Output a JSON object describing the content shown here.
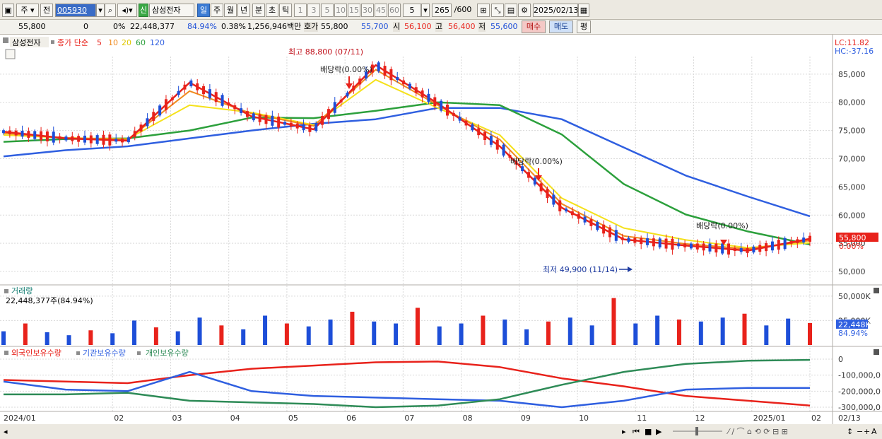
{
  "toolbar": {
    "type_label": "주",
    "prev_label": "전",
    "code_value": "005930",
    "new_badge": "신",
    "stock_name": "삼성전자",
    "period_tabs": [
      "일",
      "주",
      "월",
      "년",
      "분",
      "초",
      "틱"
    ],
    "active_period": "일",
    "minute_tabs": [
      "1",
      "3",
      "5",
      "10",
      "15",
      "30",
      "45",
      "60"
    ],
    "count_value": "5",
    "view_count": "265",
    "view_total": "/600",
    "date_value": "2025/02/13"
  },
  "info": {
    "price": "55,800",
    "change": "0",
    "change_rate": "0%",
    "volume": "22,448,377",
    "volume_ratio": "84.94%",
    "turnover_rate": "0.38%",
    "amount": "1,256,946백만",
    "quote_label": "호가",
    "ask": "55,800",
    "bid": "55,700",
    "open_label": "시",
    "open": "56,100",
    "high_label": "고",
    "high": "56,400",
    "low_label": "저",
    "low": "55,600",
    "buy_label": "매수",
    "sell_label": "매도",
    "eval_label": "평"
  },
  "colors": {
    "up": "#e8221b",
    "down": "#1d4ed8",
    "ma5": "#e8221b",
    "ma10": "#f08a1d",
    "ma20": "#f5e11b",
    "ma60": "#2ca03c",
    "ma120": "#2f5fe0",
    "foreign": "#e8221b",
    "institution": "#2f5fe0",
    "individual": "#2e8b57"
  },
  "price_panel": {
    "stock_tag": "삼성전자",
    "legend_prefix": "종가 단순",
    "ma_periods": [
      "5",
      "10",
      "20",
      "60",
      "120"
    ],
    "lc_label": "LC:11.82",
    "hc_label": "HC:-37.16",
    "high_annotation": "최고 88,800 (07/11)",
    "low_annotation": "최저 49,900 (11/14)",
    "dividend_labels": [
      "배당락(0.00%)",
      "배당락(0.00%)",
      "배당락(0.00%)"
    ],
    "current_price_tag": "55,800",
    "current_change_tag": "0.00%"
  },
  "volume_panel": {
    "title": "거래량",
    "subtitle": "22,448,377주(84.94%)",
    "current_tag": "22,448K",
    "current_pct": "84.94%"
  },
  "holdings_panel": {
    "legend": [
      "외국인보유수량",
      "기관보유수량",
      "개인보유수량"
    ]
  },
  "x_axis": {
    "labels": [
      "2024/01",
      "02",
      "03",
      "04",
      "05",
      "06",
      "07",
      "08",
      "09",
      "10",
      "11",
      "12",
      "2025/01",
      "02"
    ],
    "end_label": "02/13"
  },
  "chart_data": [
    {
      "type": "line",
      "title": "",
      "x": [
        "2024/01",
        "02",
        "03",
        "04",
        "05",
        "06",
        "07",
        "08",
        "09",
        "10",
        "11",
        "12",
        "2025/01",
        "02"
      ],
      "yticks": [
        "85,000",
        "80,000",
        "75,000",
        "70,000",
        "65,000",
        "60,000",
        "55,000",
        "50,000"
      ],
      "ylim": [
        48000,
        91000
      ],
      "series": [
        {
          "name": "5",
          "values": [
            74800,
            73600,
            73200,
            83500,
            77500,
            75200,
            86600,
            79800,
            72200,
            61300,
            55700,
            54600,
            53700,
            55800
          ]
        },
        {
          "name": "10",
          "values": [
            74500,
            73700,
            73400,
            82000,
            78000,
            75800,
            85800,
            79500,
            73400,
            62000,
            56300,
            54900,
            54000,
            55500
          ]
        },
        {
          "name": "20",
          "values": [
            74200,
            73700,
            73500,
            79500,
            78200,
            76000,
            84000,
            79000,
            74200,
            63000,
            57700,
            55600,
            54200,
            55100
          ]
        },
        {
          "name": "60",
          "values": [
            73000,
            73500,
            73600,
            75000,
            77300,
            77200,
            78500,
            80000,
            79500,
            74300,
            65500,
            60100,
            57100,
            54800
          ]
        },
        {
          "name": "120",
          "values": [
            70400,
            71500,
            72200,
            73600,
            75000,
            76200,
            77000,
            79000,
            79000,
            77000,
            72000,
            67000,
            63300,
            59800
          ]
        }
      ]
    },
    {
      "type": "bar",
      "title": "",
      "yticks": [
        "50,000K",
        "25,000K"
      ],
      "ylim": [
        0,
        60000
      ],
      "values": [
        14000,
        22000,
        13000,
        10000,
        15000,
        12000,
        25000,
        18000,
        14000,
        28000,
        20000,
        16000,
        30000,
        22000,
        19000,
        26000,
        34000,
        24000,
        22000,
        38000,
        19000,
        22000,
        30000,
        26000,
        16000,
        24000,
        28000,
        20000,
        48000,
        22000,
        30000,
        26000,
        24000,
        28000,
        32000,
        20000,
        27000,
        22448
      ]
    },
    {
      "type": "line",
      "title": "",
      "yticks": [
        "0",
        "-100,000,0",
        "-200,000,0",
        "-300,000,0"
      ],
      "series": [
        {
          "name": "외국인보유수량",
          "values": [
            -130,
            -140,
            -150,
            -100,
            -60,
            -40,
            -20,
            -15,
            -50,
            -120,
            -170,
            -230,
            -260,
            -290
          ]
        },
        {
          "name": "기관보유수량",
          "values": [
            -140,
            -190,
            -200,
            -80,
            -200,
            -230,
            -240,
            -250,
            -260,
            -300,
            -260,
            -190,
            -180,
            -180
          ]
        },
        {
          "name": "개인보유수량",
          "values": [
            -220,
            -220,
            -210,
            -260,
            -270,
            -280,
            -300,
            -290,
            -250,
            -160,
            -80,
            -30,
            -10,
            -5
          ]
        }
      ]
    }
  ]
}
